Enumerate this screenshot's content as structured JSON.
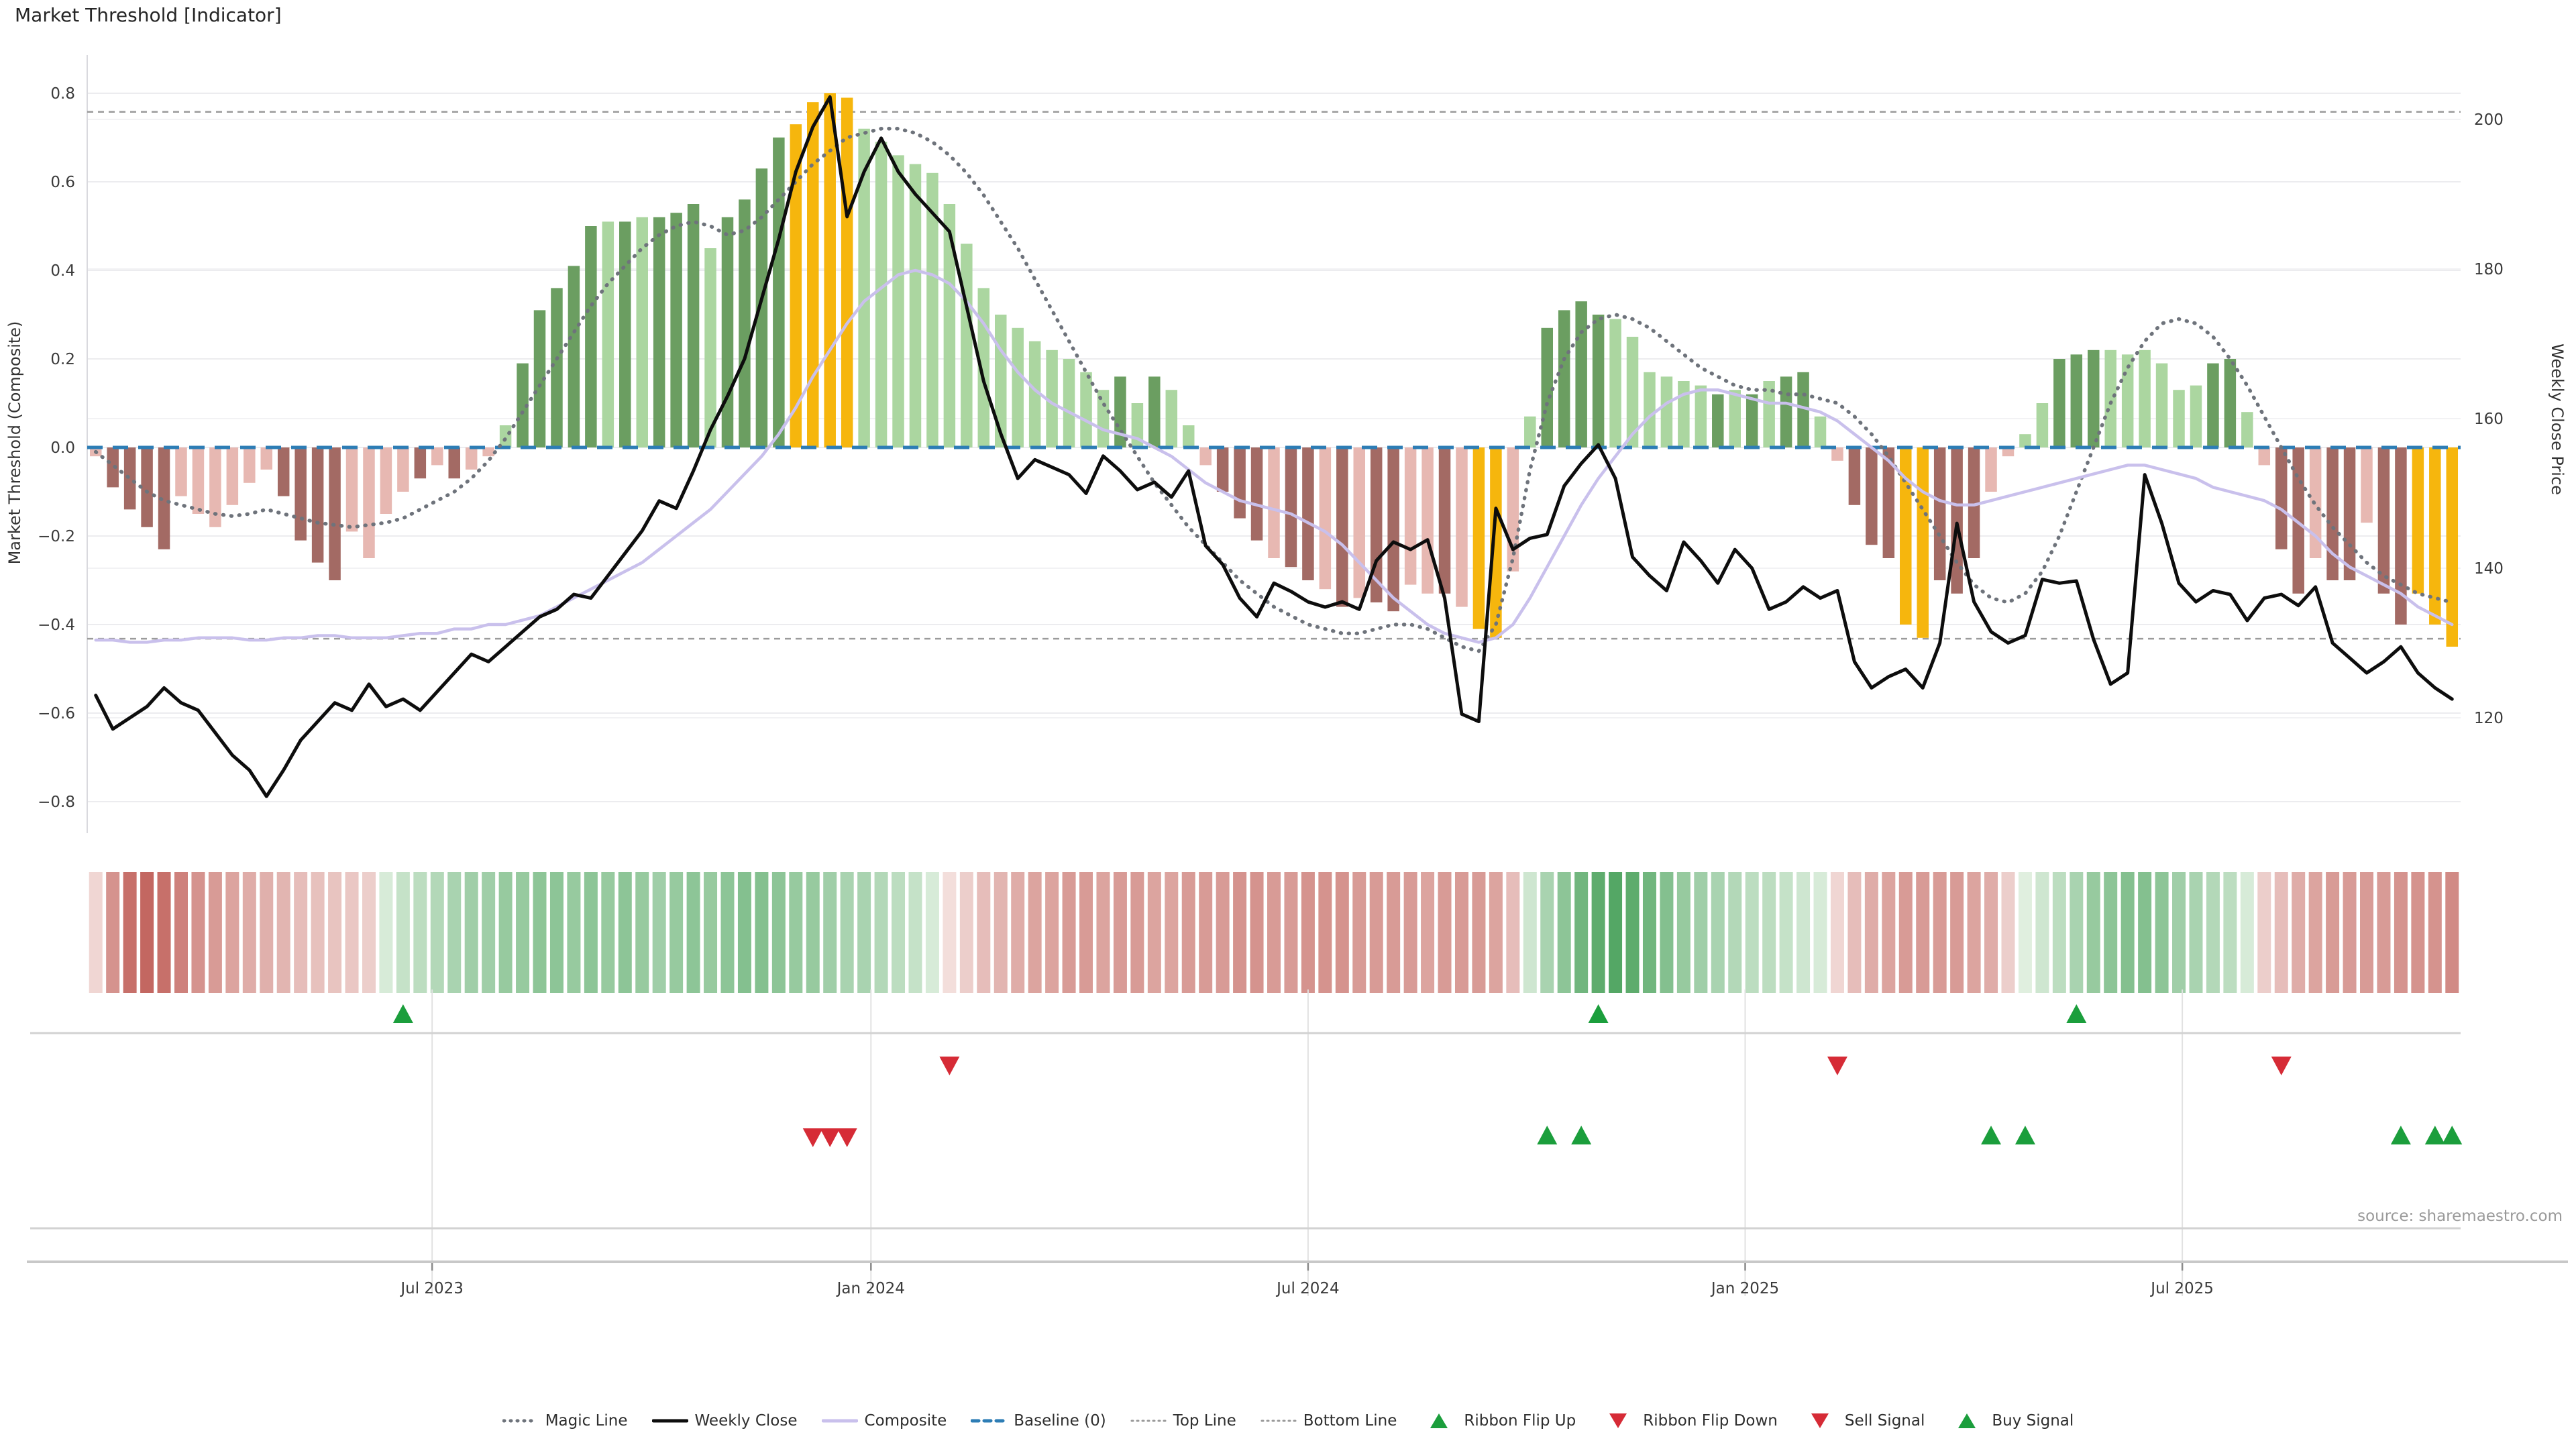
{
  "title": "Market Threshold [Indicator]",
  "source": "source: sharemaestro.com",
  "axes": {
    "left_label": "Market Threshold (Composite)",
    "right_label": "Weekly Close Price",
    "left_ticks": [
      0.8,
      0.6,
      0.4,
      0.2,
      0.0,
      -0.2,
      -0.4,
      -0.6,
      -0.8
    ],
    "right_ticks": [
      200,
      180,
      160,
      140,
      120
    ],
    "x_ticks": [
      {
        "label": "Jul 2023",
        "week": 19.7
      },
      {
        "label": "Jan 2024",
        "week": 45.4
      },
      {
        "label": "Jul 2024",
        "week": 71.0
      },
      {
        "label": "Jan 2025",
        "week": 96.6
      },
      {
        "label": "Jul 2025",
        "week": 122.2
      }
    ]
  },
  "colors": {
    "bar_dark_green": "#6b9e61",
    "bar_light_green": "#abd6a0",
    "bar_gold": "#f6b60d",
    "bar_dark_red": "#a36a64",
    "bar_pink": "#e7b8b2",
    "baseline_blue": "#2d7db5",
    "composite_line": "#c9c0ec",
    "magic_line": "#6e737b",
    "threshold_line": "#9b9b9b",
    "price_line": "#0d0d0d",
    "grid": "#ececef",
    "grid_price": "#f2f2f4",
    "separator": "#d2d2d2",
    "axis_line": "#c8c8c8",
    "ribbon_green": "#37984b",
    "ribbon_red": "#b5443c",
    "signal_up_green": "#1b9e3c",
    "signal_down_red": "#d62b36"
  },
  "legend": [
    {
      "label": "Magic Line",
      "type": "dotted",
      "color": "#6e737b"
    },
    {
      "label": "Weekly Close",
      "type": "solid",
      "color": "#0d0d0d"
    },
    {
      "label": "Composite",
      "type": "solid",
      "color": "#c9c0ec"
    },
    {
      "label": "Baseline (0)",
      "type": "dashed",
      "color": "#2d7db5"
    },
    {
      "label": "Top Line",
      "type": "dotted-thin",
      "color": "#9b9b9b"
    },
    {
      "label": "Bottom Line",
      "type": "dotted-thin",
      "color": "#9b9b9b"
    },
    {
      "label": "Ribbon Flip Up",
      "type": "tri-up",
      "color": "#1b9e3c"
    },
    {
      "label": "Ribbon Flip Down",
      "type": "tri-down",
      "color": "#d62b36"
    },
    {
      "label": "Sell Signal",
      "type": "tri-down",
      "color": "#d62b36"
    },
    {
      "label": "Buy Signal",
      "type": "tri-up",
      "color": "#1b9e3c"
    }
  ],
  "chart_data": {
    "type": "bar",
    "n_weeks": 139,
    "ylim_left": [
      -0.9,
      0.9
    ],
    "ylim_right": [
      113,
      204
    ],
    "top_line": 0.758,
    "bottom_line": -0.432,
    "baseline": 0.0,
    "composite_bars": [
      -0.02,
      -0.09,
      -0.14,
      -0.18,
      -0.23,
      -0.11,
      -0.15,
      -0.18,
      -0.13,
      -0.08,
      -0.05,
      -0.11,
      -0.21,
      -0.26,
      -0.3,
      -0.19,
      -0.25,
      -0.15,
      -0.1,
      -0.07,
      -0.04,
      -0.07,
      -0.05,
      -0.02,
      0.05,
      0.19,
      0.31,
      0.36,
      0.41,
      0.5,
      0.51,
      0.51,
      0.52,
      0.52,
      0.53,
      0.55,
      0.45,
      0.52,
      0.56,
      0.63,
      0.7,
      0.73,
      0.78,
      0.8,
      0.79,
      0.72,
      0.69,
      0.66,
      0.64,
      0.62,
      0.55,
      0.46,
      0.36,
      0.3,
      0.27,
      0.24,
      0.22,
      0.2,
      0.17,
      0.13,
      0.16,
      0.1,
      0.16,
      0.13,
      0.05,
      -0.04,
      -0.1,
      -0.16,
      -0.21,
      -0.25,
      -0.27,
      -0.3,
      -0.32,
      -0.36,
      -0.34,
      -0.35,
      -0.37,
      -0.31,
      -0.33,
      -0.33,
      -0.36,
      -0.41,
      -0.43,
      -0.28,
      0.07,
      0.27,
      0.31,
      0.33,
      0.3,
      0.29,
      0.25,
      0.17,
      0.16,
      0.15,
      0.14,
      0.12,
      0.13,
      0.12,
      0.15,
      0.16,
      0.17,
      0.07,
      -0.03,
      -0.13,
      -0.22,
      -0.25,
      -0.4,
      -0.43,
      -0.3,
      -0.33,
      -0.25,
      -0.1,
      -0.02,
      0.03,
      0.1,
      0.2,
      0.21,
      0.22,
      0.22,
      0.21,
      0.22,
      0.19,
      0.13,
      0.14,
      0.19,
      0.2,
      0.08,
      -0.04,
      -0.23,
      -0.33,
      -0.25,
      -0.3,
      -0.3,
      -0.17,
      -0.33,
      -0.4,
      -0.33,
      -0.4,
      -0.45
    ],
    "bar_colors": "prrrrpppppprrrrpppprprppldddddldldddlddddggggllllllllllllllldldllprrrprrprprrpprpggplddddlllllldldlddlprrrggrrrpplldddllllllddlprrprrprrggg",
    "bar_color_key": {
      "d": "#6b9e61",
      "l": "#abd6a0",
      "g": "#f6b60d",
      "r": "#a36a64",
      "p": "#e7b8b2"
    },
    "weekly_close": [
      123,
      118.5,
      120,
      121.5,
      124,
      122,
      121,
      118,
      115,
      113,
      109.5,
      113,
      117,
      119.5,
      122,
      121,
      124.5,
      121.5,
      122.5,
      121,
      123.5,
      126,
      128.5,
      127.5,
      129.5,
      131.5,
      133.5,
      134.5,
      136.5,
      136,
      139,
      142,
      145,
      149,
      148,
      153,
      158.5,
      163,
      168,
      176,
      184,
      193,
      199,
      203,
      187,
      193,
      197.5,
      193,
      190,
      187.5,
      185,
      175,
      165,
      158,
      152,
      154.5,
      153.5,
      152.5,
      150,
      155,
      153,
      150.5,
      151.5,
      149.5,
      153,
      143,
      140.5,
      136,
      133.5,
      138,
      136.9,
      135.5,
      134.8,
      135.5,
      134.5,
      141,
      143.5,
      142.5,
      143.8,
      136,
      120.5,
      119.5,
      148,
      142.5,
      144,
      144.5,
      151,
      154,
      156.5,
      152,
      141.5,
      139,
      137,
      143.5,
      141,
      138,
      142.5,
      140,
      134.5,
      135.5,
      137.5,
      136,
      137,
      127.5,
      124,
      125.5,
      126.5,
      124,
      130,
      146,
      135.5,
      131.5,
      130,
      131,
      138.5,
      138,
      138.3,
      130.5,
      124.5,
      126,
      152.5,
      146,
      138,
      135.5,
      137,
      136.5,
      133,
      136,
      136.5,
      135,
      137.5,
      130,
      128,
      126,
      127.5,
      129.5,
      126,
      124,
      122.5
    ],
    "composite_line": [
      -0.435,
      -0.435,
      -0.44,
      -0.44,
      -0.435,
      -0.435,
      -0.43,
      -0.43,
      -0.43,
      -0.435,
      -0.435,
      -0.43,
      -0.43,
      -0.425,
      -0.425,
      -0.43,
      -0.43,
      -0.43,
      -0.425,
      -0.42,
      -0.42,
      -0.41,
      -0.41,
      -0.4,
      -0.4,
      -0.39,
      -0.38,
      -0.36,
      -0.34,
      -0.32,
      -0.3,
      -0.28,
      -0.26,
      -0.23,
      -0.2,
      -0.17,
      -0.14,
      -0.1,
      -0.06,
      -0.02,
      0.03,
      0.09,
      0.16,
      0.22,
      0.28,
      0.33,
      0.36,
      0.39,
      0.4,
      0.39,
      0.37,
      0.33,
      0.28,
      0.22,
      0.17,
      0.13,
      0.1,
      0.08,
      0.06,
      0.04,
      0.03,
      0.02,
      0.0,
      -0.02,
      -0.05,
      -0.08,
      -0.1,
      -0.12,
      -0.13,
      -0.14,
      -0.15,
      -0.17,
      -0.19,
      -0.22,
      -0.26,
      -0.3,
      -0.34,
      -0.37,
      -0.4,
      -0.42,
      -0.43,
      -0.44,
      -0.43,
      -0.4,
      -0.34,
      -0.27,
      -0.2,
      -0.13,
      -0.07,
      -0.02,
      0.03,
      0.07,
      0.1,
      0.12,
      0.13,
      0.13,
      0.12,
      0.11,
      0.1,
      0.1,
      0.09,
      0.08,
      0.06,
      0.03,
      0.0,
      -0.03,
      -0.07,
      -0.1,
      -0.12,
      -0.13,
      -0.13,
      -0.12,
      -0.11,
      -0.1,
      -0.09,
      -0.08,
      -0.07,
      -0.06,
      -0.05,
      -0.04,
      -0.04,
      -0.05,
      -0.06,
      -0.07,
      -0.09,
      -0.1,
      -0.11,
      -0.12,
      -0.14,
      -0.17,
      -0.2,
      -0.24,
      -0.27,
      -0.29,
      -0.31,
      -0.33,
      -0.36,
      -0.38,
      -0.4
    ],
    "magic_line": [
      -0.01,
      -0.04,
      -0.07,
      -0.1,
      -0.12,
      -0.13,
      -0.14,
      -0.15,
      -0.155,
      -0.15,
      -0.14,
      -0.15,
      -0.16,
      -0.17,
      -0.175,
      -0.18,
      -0.175,
      -0.17,
      -0.16,
      -0.14,
      -0.12,
      -0.1,
      -0.07,
      -0.03,
      0.02,
      0.08,
      0.14,
      0.2,
      0.26,
      0.32,
      0.37,
      0.41,
      0.45,
      0.48,
      0.5,
      0.51,
      0.5,
      0.48,
      0.49,
      0.52,
      0.56,
      0.6,
      0.64,
      0.67,
      0.7,
      0.71,
      0.72,
      0.72,
      0.71,
      0.69,
      0.66,
      0.62,
      0.57,
      0.51,
      0.45,
      0.38,
      0.31,
      0.24,
      0.17,
      0.1,
      0.04,
      -0.02,
      -0.08,
      -0.13,
      -0.18,
      -0.22,
      -0.26,
      -0.3,
      -0.33,
      -0.36,
      -0.38,
      -0.4,
      -0.41,
      -0.42,
      -0.42,
      -0.41,
      -0.4,
      -0.4,
      -0.41,
      -0.43,
      -0.45,
      -0.46,
      -0.4,
      -0.25,
      -0.05,
      0.1,
      0.2,
      0.26,
      0.29,
      0.3,
      0.29,
      0.27,
      0.24,
      0.21,
      0.18,
      0.16,
      0.14,
      0.13,
      0.13,
      0.12,
      0.12,
      0.11,
      0.1,
      0.07,
      0.03,
      -0.02,
      -0.08,
      -0.14,
      -0.2,
      -0.26,
      -0.31,
      -0.34,
      -0.35,
      -0.33,
      -0.28,
      -0.2,
      -0.1,
      0.0,
      0.1,
      0.18,
      0.24,
      0.28,
      0.29,
      0.28,
      0.25,
      0.2,
      0.14,
      0.07,
      0.0,
      -0.07,
      -0.13,
      -0.18,
      -0.22,
      -0.26,
      -0.29,
      -0.31,
      -0.33,
      -0.34,
      -0.35
    ],
    "ribbon": [
      -0.15,
      -0.55,
      -0.75,
      -0.8,
      -0.75,
      -0.65,
      -0.55,
      -0.5,
      -0.45,
      -0.4,
      -0.38,
      -0.35,
      -0.3,
      -0.28,
      -0.26,
      -0.24,
      -0.2,
      0.15,
      0.25,
      0.3,
      0.35,
      0.4,
      0.45,
      0.45,
      0.5,
      0.5,
      0.55,
      0.55,
      0.5,
      0.55,
      0.5,
      0.55,
      0.5,
      0.45,
      0.5,
      0.55,
      0.5,
      0.55,
      0.6,
      0.6,
      0.55,
      0.5,
      0.5,
      0.45,
      0.4,
      0.4,
      0.35,
      0.3,
      0.25,
      0.15,
      -0.1,
      -0.2,
      -0.3,
      -0.35,
      -0.4,
      -0.45,
      -0.45,
      -0.5,
      -0.5,
      -0.45,
      -0.5,
      -0.5,
      -0.45,
      -0.45,
      -0.5,
      -0.5,
      -0.5,
      -0.55,
      -0.55,
      -0.5,
      -0.5,
      -0.55,
      -0.55,
      -0.55,
      -0.5,
      -0.5,
      -0.5,
      -0.5,
      -0.45,
      -0.5,
      -0.5,
      -0.5,
      -0.45,
      -0.3,
      0.2,
      0.4,
      0.55,
      0.7,
      0.8,
      0.85,
      0.8,
      0.7,
      0.6,
      0.5,
      0.45,
      0.4,
      0.35,
      0.3,
      0.3,
      0.25,
      0.2,
      0.15,
      -0.15,
      -0.3,
      -0.4,
      -0.45,
      -0.5,
      -0.5,
      -0.5,
      -0.5,
      -0.45,
      -0.4,
      -0.2,
      0.1,
      0.2,
      0.3,
      0.4,
      0.5,
      0.55,
      0.6,
      0.6,
      0.55,
      0.45,
      0.4,
      0.35,
      0.3,
      0.15,
      -0.2,
      -0.3,
      -0.4,
      -0.45,
      -0.5,
      -0.5,
      -0.5,
      -0.5,
      -0.55,
      -0.55,
      -0.55,
      -0.6
    ],
    "signals": {
      "ribbon_flip_up_weeks": [
        18,
        88,
        116
      ],
      "ribbon_flip_down_weeks": [
        50,
        102,
        128
      ],
      "sell_signal_weeks": [
        42,
        43,
        44
      ],
      "buy_signal_weeks": [
        85,
        87,
        111,
        113,
        135,
        137,
        138
      ]
    }
  }
}
